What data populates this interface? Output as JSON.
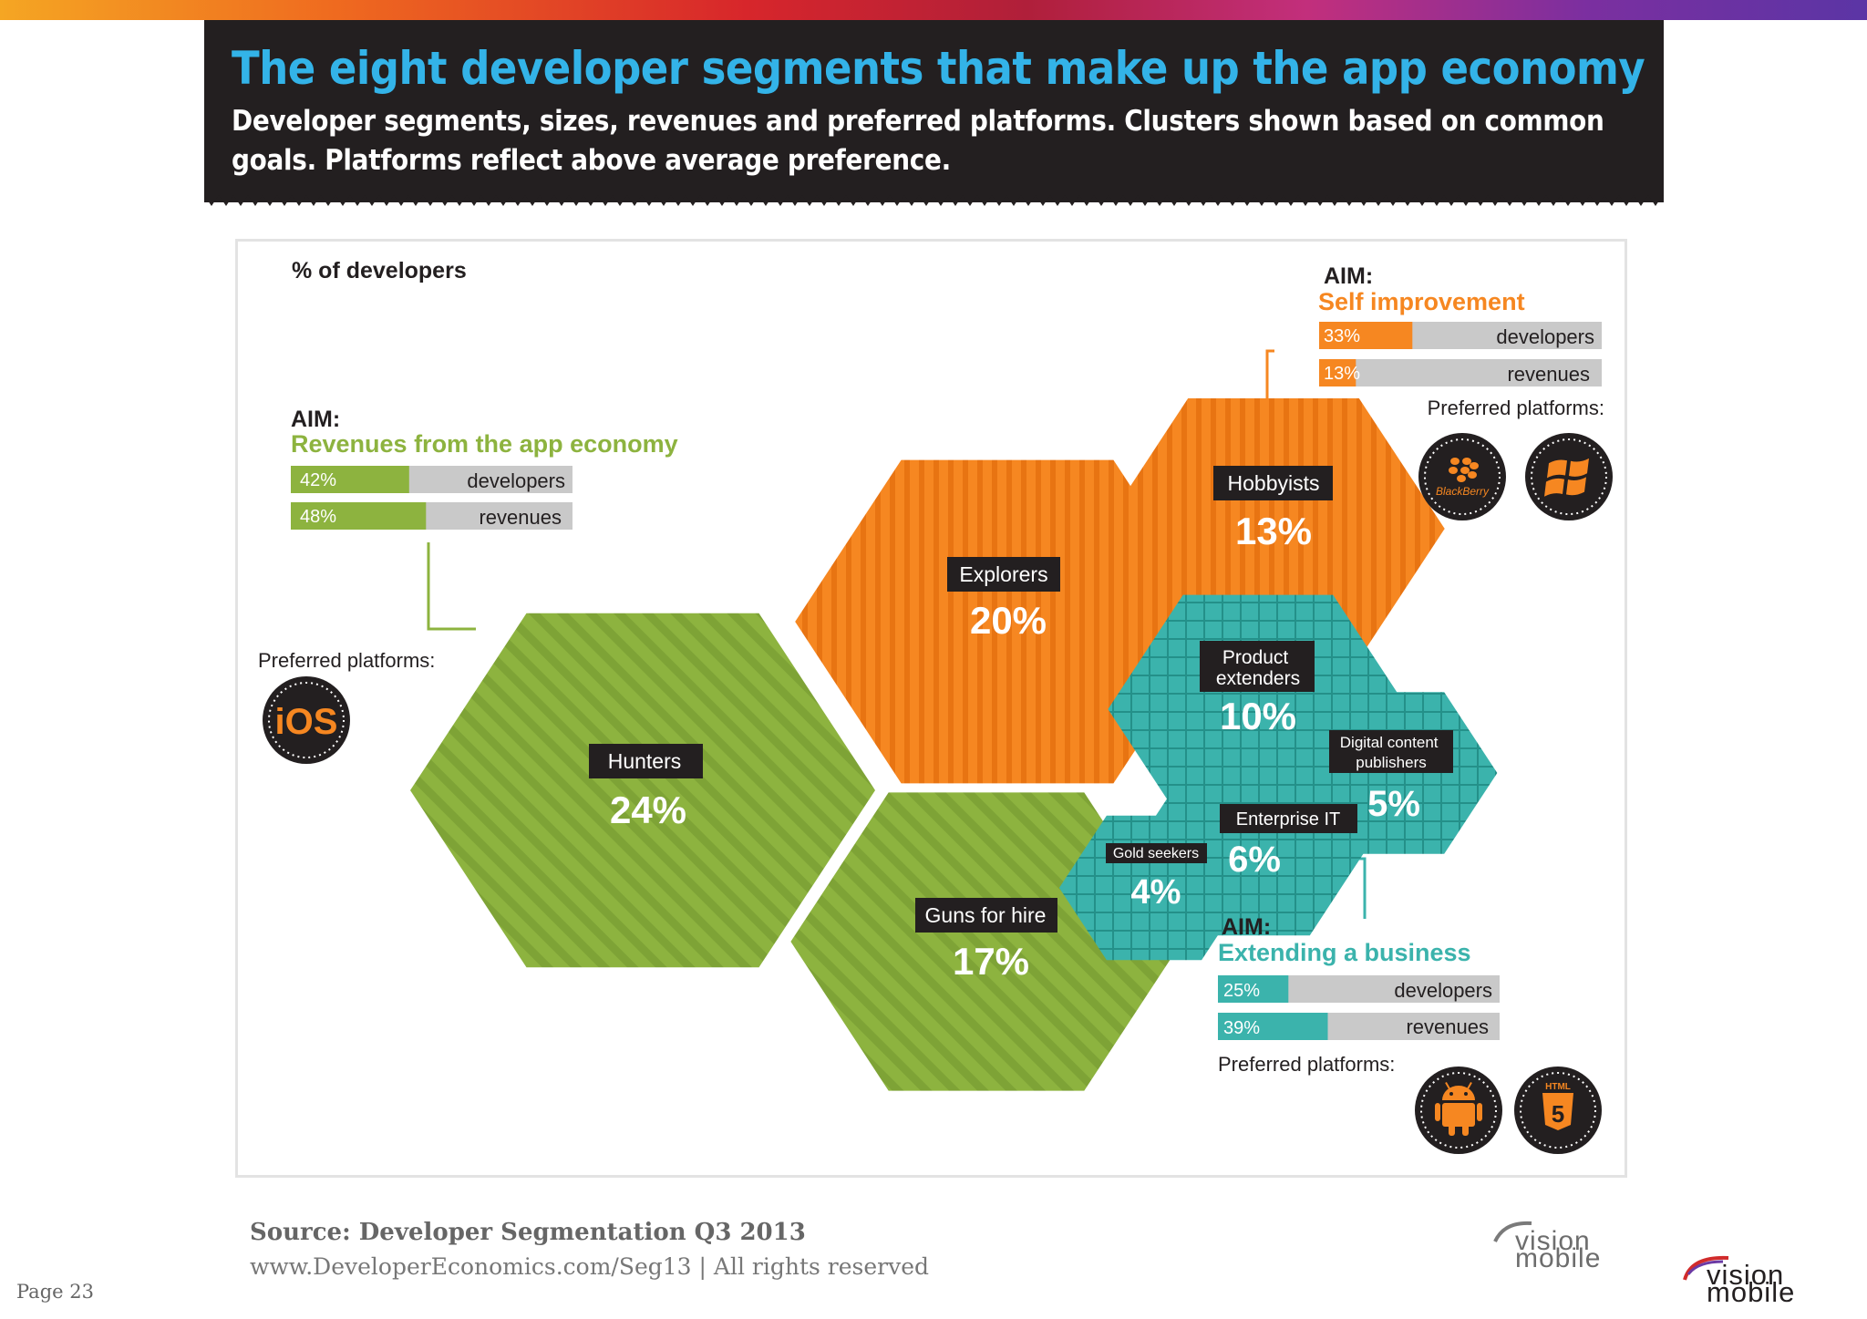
{
  "header": {
    "title": "The eight developer segments that make up the app economy",
    "subtitle": "Developer segments, sizes, revenues and preferred platforms. Clusters shown based on common goals. Platforms reflect above average preference."
  },
  "colors": {
    "green": "#8db33f",
    "green_stripe": "#7ea336",
    "orange": "#f68721",
    "orange_stripe": "#e87412",
    "teal": "#3bb3ac",
    "teal_grid": "#249089",
    "gray_bar": "#c9c9c9",
    "dark": "#231f20"
  },
  "chart_data": {
    "type": "bubble",
    "title": "% of developers",
    "unit": "%",
    "segments": [
      {
        "name": "Hunters",
        "value": 24,
        "label": "24%",
        "cluster": "revenues"
      },
      {
        "name": "Guns for hire",
        "value": 17,
        "label": "17%",
        "cluster": "revenues"
      },
      {
        "name": "Explorers",
        "value": 20,
        "label": "20%",
        "cluster": "self_improvement"
      },
      {
        "name": "Hobbyists",
        "value": 13,
        "label": "13%",
        "cluster": "self_improvement"
      },
      {
        "name": "Product extenders",
        "value": 10,
        "label": "10%",
        "cluster": "extending_business"
      },
      {
        "name": "Digital content publishers",
        "value": 5,
        "label": "5%",
        "cluster": "extending_business"
      },
      {
        "name": "Enterprise IT",
        "value": 6,
        "label": "6%",
        "cluster": "extending_business"
      },
      {
        "name": "Gold seekers",
        "value": 4,
        "label": "4%",
        "cluster": "extending_business"
      }
    ],
    "clusters": [
      {
        "id": "revenues",
        "aim_label": "AIM:",
        "aim": "Revenues from the app economy",
        "bars": [
          {
            "label": "developers",
            "value": 42,
            "text": "42%"
          },
          {
            "label": "revenues",
            "value": 48,
            "text": "48%"
          }
        ],
        "platforms_label": "Preferred platforms:",
        "platforms": [
          "iOS"
        ]
      },
      {
        "id": "self_improvement",
        "aim_label": "AIM:",
        "aim": "Self improvement",
        "bars": [
          {
            "label": "developers",
            "value": 33,
            "text": "33%"
          },
          {
            "label": "revenues",
            "value": 13,
            "text": "13%"
          }
        ],
        "platforms_label": "Preferred platforms:",
        "platforms": [
          "BlackBerry",
          "Windows"
        ]
      },
      {
        "id": "extending_business",
        "aim_label": "AIM:",
        "aim": "Extending a business",
        "bars": [
          {
            "label": "developers",
            "value": 25,
            "text": "25%"
          },
          {
            "label": "revenues",
            "value": 39,
            "text": "39%"
          }
        ],
        "platforms_label": "Preferred platforms:",
        "platforms": [
          "Android",
          "HTML5"
        ]
      }
    ]
  },
  "platform_icons": {
    "ios": {
      "icon": "ios-icon",
      "text": "iOS"
    },
    "blackberry": {
      "icon": "blackberry-icon",
      "text": "BlackBerry"
    },
    "windows": {
      "icon": "windows-icon"
    },
    "android": {
      "icon": "android-icon"
    },
    "html5": {
      "icon": "html5-icon",
      "text": "HTML",
      "glyph": "5"
    }
  },
  "footer": {
    "source": "Source: Developer Segmentation Q3 2013",
    "url": "www.DeveloperEconomics.com/Seg13 | All rights reserved",
    "page": "Page 23",
    "logo_top": "vision",
    "logo_bottom": "mobile"
  }
}
